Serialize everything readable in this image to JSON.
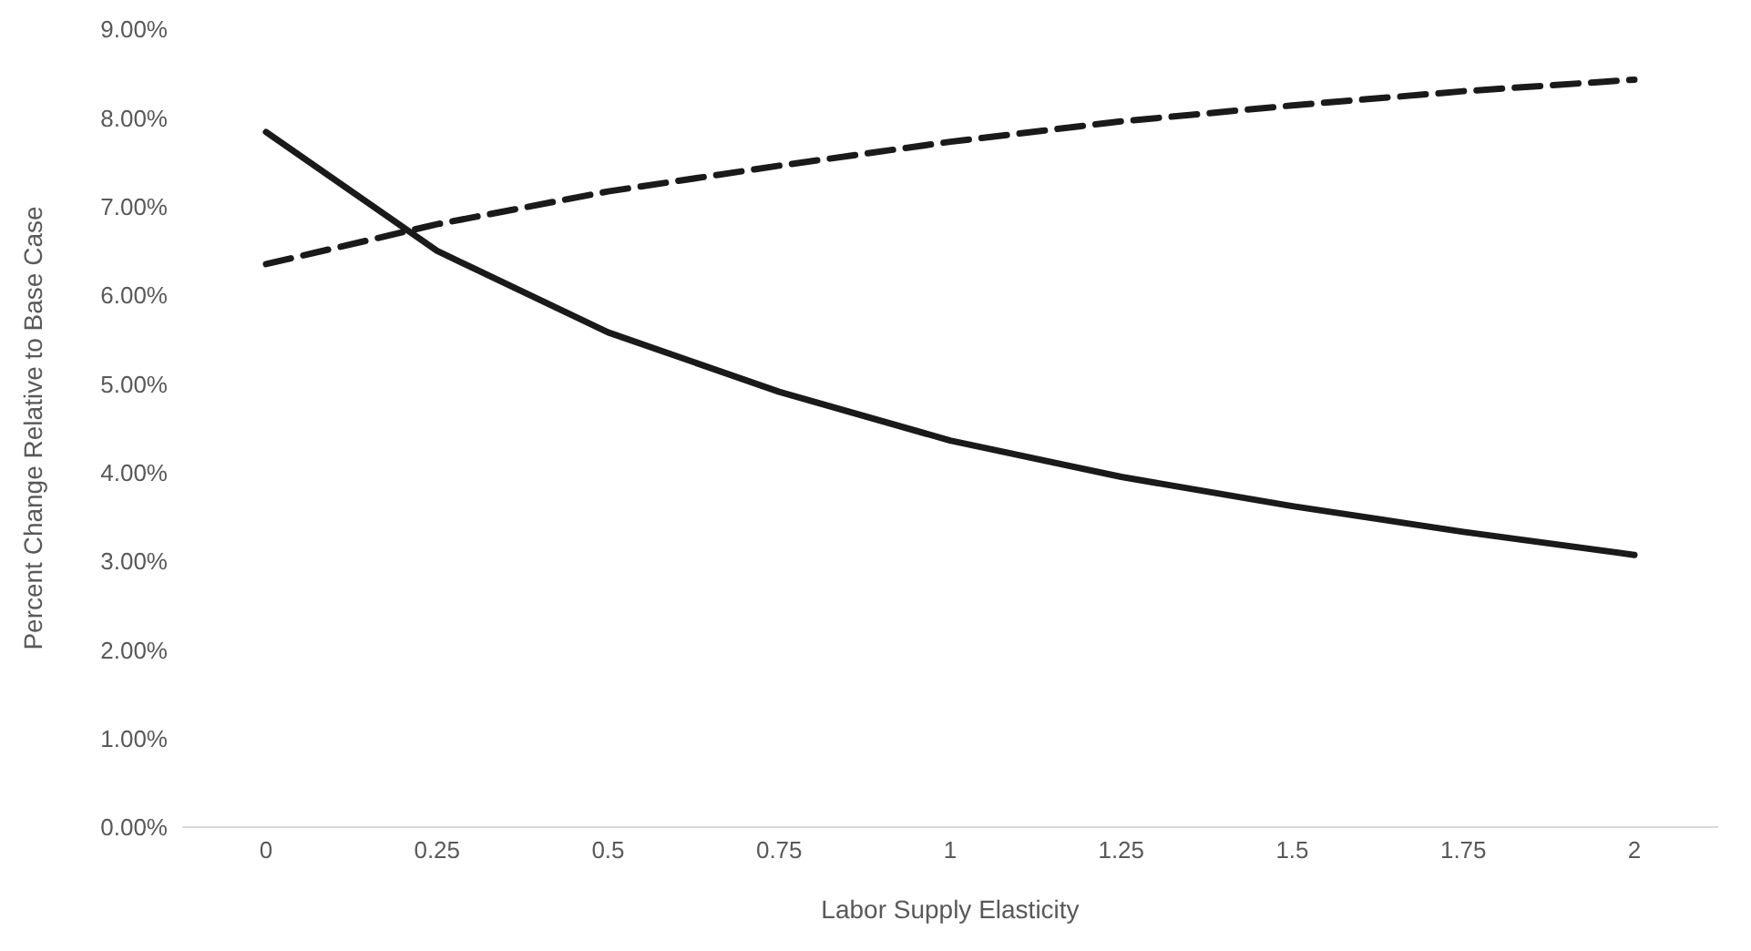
{
  "chart_data": {
    "type": "line",
    "xlabel": "Labor Supply Elasticity",
    "ylabel": "Percent Change Relative to Base Case",
    "categories": [
      "0",
      "0.25",
      "0.5",
      "0.75",
      "1",
      "1.25",
      "1.5",
      "1.75",
      "2"
    ],
    "series": [
      {
        "color": "#1a1a1a",
        "line_style": "solid",
        "values": [
          7.84,
          6.5,
          5.58,
          4.91,
          4.36,
          3.95,
          3.62,
          3.33,
          3.07
        ]
      },
      {
        "color": "#1a1a1a",
        "line_style": "dashed",
        "values": [
          6.35,
          6.8,
          7.17,
          7.46,
          7.73,
          7.96,
          8.14,
          8.3,
          8.43
        ]
      }
    ],
    "ylim": [
      0,
      9
    ],
    "yticks": [
      {
        "value": 0,
        "label": "0.00%"
      },
      {
        "value": 1,
        "label": "1.00%"
      },
      {
        "value": 2,
        "label": "2.00%"
      },
      {
        "value": 3,
        "label": "3.00%"
      },
      {
        "value": 4,
        "label": "4.00%"
      },
      {
        "value": 5,
        "label": "5.00%"
      },
      {
        "value": 6,
        "label": "6.00%"
      },
      {
        "value": 7,
        "label": "7.00%"
      },
      {
        "value": 8,
        "label": "8.00%"
      },
      {
        "value": 9,
        "label": "9.00%"
      }
    ],
    "grid": false,
    "legend": false,
    "marker": "none"
  }
}
